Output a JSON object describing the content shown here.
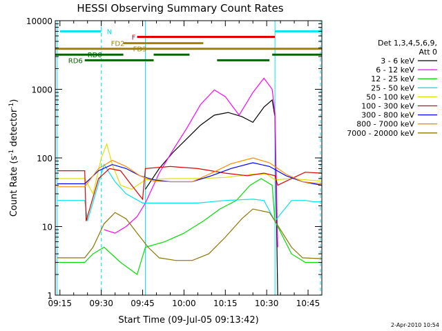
{
  "chart_data": {
    "type": "line",
    "title": "HESSI Observing Summary Count Rates",
    "xlabel": "Start Time (09-Jul-05 09:13:42)",
    "ylabel_main": "Count Rate (s",
    "ylabel_sup1": "-1",
    "ylabel_mid": " detector",
    "ylabel_sup2": "-1",
    "ylabel_end": ")",
    "timestamp": "2-Apr-2010 10:54",
    "x_range_minutes": [
      -1.7,
      95
    ],
    "y_log": true,
    "ylim": [
      1,
      10000
    ],
    "x_ticks": [
      {
        "m": 0,
        "label": "09:15"
      },
      {
        "m": 15,
        "label": "09:30"
      },
      {
        "m": 30,
        "label": "09:45"
      },
      {
        "m": 45,
        "label": "10:00"
      },
      {
        "m": 60,
        "label": "10:15"
      },
      {
        "m": 75,
        "label": "10:30"
      },
      {
        "m": 90,
        "label": "10:45"
      }
    ],
    "y_ticks": [
      {
        "v": 1,
        "label": "1"
      },
      {
        "v": 10,
        "label": "10"
      },
      {
        "v": 100,
        "label": "100"
      },
      {
        "v": 1000,
        "label": "1000"
      },
      {
        "v": 10000,
        "label": "10000"
      }
    ],
    "legend_title": [
      "Det 1,3,4,5,6,9,",
      "Att 0"
    ],
    "legend_position": "right",
    "flag_bars": [
      {
        "label": "N",
        "color": "#00e5ee",
        "y": 7000,
        "segments": [
          [
            0,
            15
          ],
          [
            78,
            95
          ]
        ],
        "label_m": 17
      },
      {
        "label": "F",
        "color": "#e00000",
        "y": 5800,
        "segments": [
          [
            28,
            78
          ]
        ],
        "label_m": 26
      },
      {
        "label": "FD2",
        "color": "#a08000",
        "y": 4700,
        "segments": [
          [
            23,
            52
          ]
        ],
        "label_m": 18.5
      },
      {
        "label": "FD3",
        "color": "#a08000",
        "y": 3900,
        "segments": [
          [
            -1.7,
            95
          ]
        ],
        "label_m": 26.5
      },
      {
        "label": "RD0",
        "color": "#006400",
        "y": 3200,
        "segments": [
          [
            -1.7,
            23
          ],
          [
            34,
            47
          ],
          [
            77,
            95
          ]
        ],
        "label_m": 10
      },
      {
        "label": "RD6",
        "color": "#006400",
        "y": 2650,
        "segments": [
          [
            9,
            34
          ],
          [
            57,
            76
          ]
        ],
        "label_m": 3
      }
    ],
    "vlines": [
      {
        "m": -1.0,
        "color": "#00e5ee",
        "dashed": false
      },
      {
        "m": 15.0,
        "color": "#00e5ee",
        "dashed": true
      },
      {
        "m": 31.0,
        "color": "#00e5ee",
        "dashed": false
      },
      {
        "m": 78.0,
        "color": "#00e5ee",
        "dashed": false
      },
      {
        "m": 94.5,
        "color": "#00e5ee",
        "dashed": true
      }
    ],
    "series": [
      {
        "name": "3 - 6 keV",
        "color": "#000000",
        "x": [
          31,
          36,
          41,
          46,
          51,
          56,
          61,
          66,
          70,
          74,
          77,
          78,
          79
        ],
        "y": [
          35,
          70,
          120,
          190,
          300,
          420,
          460,
          400,
          330,
          550,
          700,
          400,
          1
        ]
      },
      {
        "name": "6 - 12 keV",
        "color": "#ff00ff",
        "x": [
          16,
          20,
          24,
          28,
          31,
          36,
          41,
          46,
          51,
          56,
          60,
          65,
          70,
          74,
          77,
          78,
          79
        ],
        "y": [
          9,
          8,
          10,
          14,
          22,
          60,
          130,
          270,
          600,
          980,
          780,
          420,
          900,
          1450,
          1000,
          450,
          5
        ]
      },
      {
        "name": "12 - 25 keV",
        "color": "#00e000",
        "x": [
          -1,
          9,
          12,
          16,
          22,
          28,
          31,
          38,
          45,
          52,
          58,
          64,
          69,
          73,
          77,
          78,
          84,
          89,
          92,
          95
        ],
        "y": [
          3,
          3,
          4,
          5,
          3,
          2,
          5,
          6,
          8,
          12,
          18,
          24,
          40,
          50,
          40,
          12,
          4,
          3,
          3,
          3
        ]
      },
      {
        "name": "25 - 50 keV",
        "color": "#00e5ee",
        "x": [
          -1,
          9,
          10,
          16,
          20,
          24,
          30,
          31,
          40,
          50,
          60,
          70,
          74,
          78,
          84,
          89,
          92,
          95
        ],
        "y": [
          24,
          24,
          12,
          80,
          45,
          30,
          22,
          22,
          22,
          22,
          24,
          25,
          24,
          12,
          24,
          24,
          23,
          23
        ]
      },
      {
        "name": "50 - 100 keV",
        "color": "#e0e000",
        "x": [
          -1,
          9,
          12,
          15,
          17,
          19,
          22,
          26,
          31,
          40,
          50,
          60,
          70,
          75,
          78,
          84,
          89,
          95
        ],
        "y": [
          50,
          50,
          30,
          100,
          160,
          80,
          40,
          35,
          48,
          50,
          50,
          52,
          58,
          58,
          48,
          50,
          48,
          46
        ]
      },
      {
        "name": "100 - 300 keV",
        "color": "#e00000",
        "x": [
          -1,
          9,
          9.5,
          14,
          18,
          22,
          26,
          30,
          31,
          40,
          50,
          60,
          68,
          74,
          78,
          79,
          84,
          89,
          95
        ],
        "y": [
          65,
          65,
          12,
          50,
          70,
          65,
          40,
          25,
          70,
          75,
          70,
          60,
          55,
          60,
          55,
          40,
          50,
          62,
          60
        ]
      },
      {
        "name": "300 - 800 keV",
        "color": "#0000ff",
        "x": [
          -1,
          9,
          14,
          19,
          24,
          29,
          34,
          40,
          48,
          55,
          62,
          70,
          76,
          82,
          88,
          95
        ],
        "y": [
          42,
          42,
          65,
          80,
          70,
          55,
          48,
          45,
          45,
          55,
          70,
          85,
          75,
          55,
          45,
          40
        ]
      },
      {
        "name": "800 - 7000 keV",
        "color": "#ff8c00",
        "x": [
          -1,
          9,
          14,
          19,
          24,
          29,
          34,
          40,
          48,
          55,
          62,
          70,
          76,
          82,
          88,
          95
        ],
        "y": [
          38,
          38,
          70,
          92,
          75,
          55,
          46,
          45,
          45,
          60,
          82,
          100,
          85,
          58,
          45,
          42
        ]
      },
      {
        "name": "7000 - 20000 keV",
        "color": "#8b7500",
        "x": [
          -1,
          9,
          12,
          16,
          20,
          24,
          28,
          32,
          36,
          42,
          48,
          54,
          60,
          66,
          70,
          76,
          80,
          84,
          88,
          95
        ],
        "y": [
          3.5,
          3.5,
          5,
          11,
          16,
          13,
          8,
          5,
          3.5,
          3.2,
          3.2,
          4,
          7,
          13,
          18,
          16,
          9,
          5,
          3.5,
          3.4
        ]
      }
    ]
  }
}
